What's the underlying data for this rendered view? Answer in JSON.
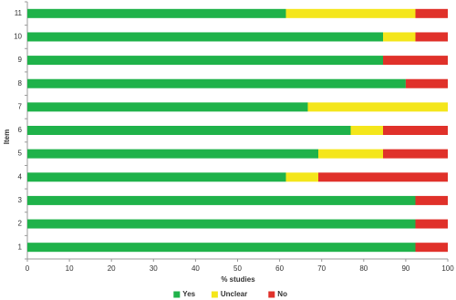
{
  "chart_data": {
    "type": "bar",
    "orientation": "horizontal",
    "stacked": true,
    "categories": [
      "1",
      "2",
      "3",
      "4",
      "5",
      "6",
      "7",
      "8",
      "9",
      "10",
      "11"
    ],
    "series": [
      {
        "name": "Yes",
        "color": "#1fb24a",
        "values": [
          92.3,
          92.3,
          92.3,
          61.5,
          69.2,
          76.9,
          66.7,
          90,
          84.6,
          84.6,
          61.5
        ]
      },
      {
        "name": "Unclear",
        "color": "#f4e61b",
        "values": [
          0,
          0,
          0,
          7.7,
          15.4,
          7.7,
          33.3,
          0,
          0,
          7.7,
          30.8
        ]
      },
      {
        "name": "No",
        "color": "#e0312a",
        "values": [
          7.7,
          7.7,
          7.7,
          30.8,
          15.4,
          15.4,
          0,
          10,
          15.4,
          7.7,
          7.7
        ]
      }
    ],
    "xlim": [
      0,
      100
    ],
    "xticks": [
      0,
      10,
      20,
      30,
      40,
      50,
      60,
      70,
      80,
      90,
      100
    ],
    "xlabel": "% studies",
    "ylabel": "Item",
    "legend": "bottom"
  }
}
